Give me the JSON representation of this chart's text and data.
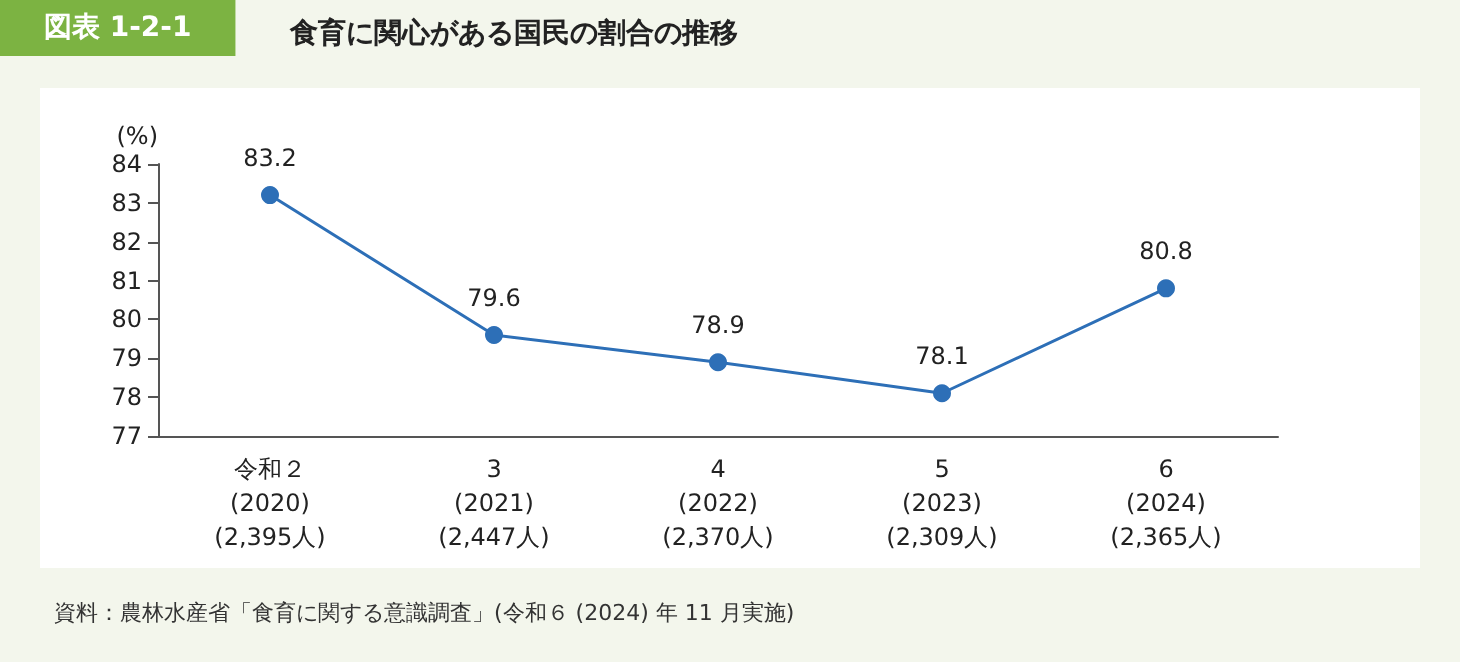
{
  "chart_data": {
    "type": "line",
    "title": "食育に関心がある国民の割合の推移",
    "ylabel": "(%)",
    "categories": [
      "令和２\n(2020)\n(2,395人)",
      "3\n(2021)\n(2,447人)",
      "4\n(2022)\n(2,370人)",
      "5\n(2023)\n(2,309人)",
      "6\n(2024)\n(2,365人)"
    ],
    "series": [
      {
        "color": "#2d6fb7",
        "values": [
          83.2,
          79.6,
          78.9,
          78.1,
          80.8
        ]
      }
    ],
    "ylim": [
      77,
      84
    ],
    "yticks": [
      77,
      78,
      79,
      80,
      81,
      82,
      83,
      84
    ],
    "grid": false,
    "marker": "circle",
    "line_style": "solid",
    "data_labels": true,
    "annotations": [
      "図表 1-2-1",
      "資料：農林水産省「食育に関する意識調査」(令和６ (2024) 年 11 月実施)"
    ]
  }
}
